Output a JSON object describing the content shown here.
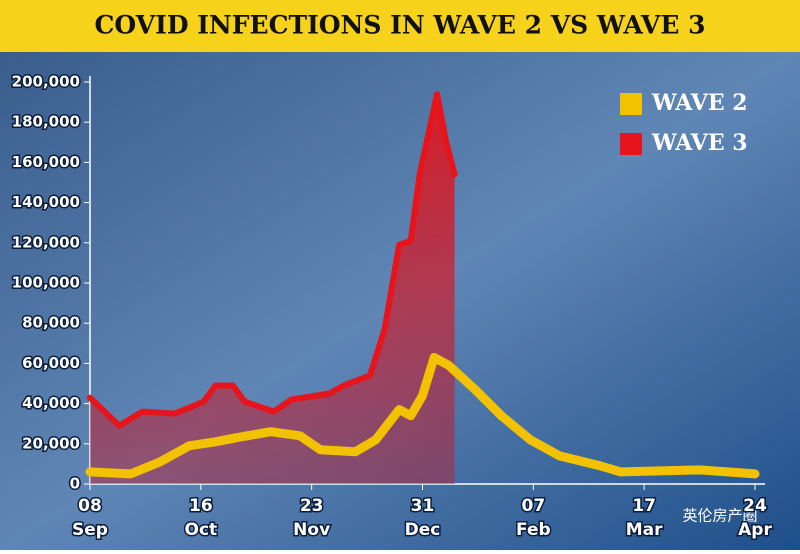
{
  "chart_data": {
    "type": "line",
    "title": "COVID INFECTIONS IN WAVE 2 VS WAVE 3",
    "watermark": "英伦房产圈",
    "xlim": [
      0,
      228
    ],
    "xticks": [
      {
        "value": 0,
        "label": "08"
      },
      {
        "value": 38,
        "label": "16"
      },
      {
        "value": 76,
        "label": "23"
      },
      {
        "value": 114,
        "label": "31"
      },
      {
        "value": 152,
        "label": "07"
      },
      {
        "value": 190,
        "label": "17"
      },
      {
        "value": 228,
        "label": "24"
      }
    ],
    "xtick_months": [
      "Sep",
      "Oct",
      "Nov",
      "Dec",
      "Feb",
      "Mar",
      "Apr"
    ],
    "ylim": [
      0,
      200000
    ],
    "yticks": [
      0,
      {
        "value": 20000,
        "label": "20,000"
      },
      {
        "value": 40000,
        "label": "40,000"
      },
      {
        "value": 60000,
        "label": "60,000"
      },
      {
        "value": 80000,
        "label": "80,000"
      },
      {
        "value": 100000,
        "label": "100,000"
      },
      {
        "value": 120000,
        "label": "120,000"
      },
      {
        "value": 140000,
        "label": "140,000"
      },
      {
        "value": 160000,
        "label": "160,000"
      },
      {
        "value": 180000,
        "label": "180,000"
      },
      {
        "value": 200000,
        "label": "200,000"
      }
    ],
    "legend": "top-right",
    "series": [
      {
        "name": "WAVE 2",
        "color": "#f2c200",
        "x": [
          0,
          14,
          24,
          34,
          43,
          50,
          62,
          72,
          79,
          91,
          98,
          106,
          110,
          114,
          118,
          123,
          132,
          141,
          151,
          161,
          175,
          182,
          209,
          228
        ],
        "values": [
          6000,
          5000,
          11000,
          19000,
          21000,
          23000,
          26000,
          24000,
          17000,
          16000,
          22000,
          37000,
          34000,
          44000,
          63000,
          59000,
          47000,
          34000,
          22000,
          14000,
          9000,
          6000,
          7000,
          5000
        ]
      },
      {
        "name": "WAVE 3",
        "color": "#e8141b",
        "x": [
          0,
          10,
          18,
          29,
          39,
          43,
          49,
          53,
          63,
          69,
          82,
          87,
          96,
          101,
          106,
          110,
          113,
          119,
          122,
          125
        ],
        "values": [
          43000,
          29000,
          36000,
          35000,
          41000,
          49000,
          49000,
          41000,
          36000,
          42000,
          45000,
          49000,
          54000,
          77000,
          119000,
          121000,
          154000,
          194000,
          171000,
          154000
        ]
      }
    ]
  }
}
